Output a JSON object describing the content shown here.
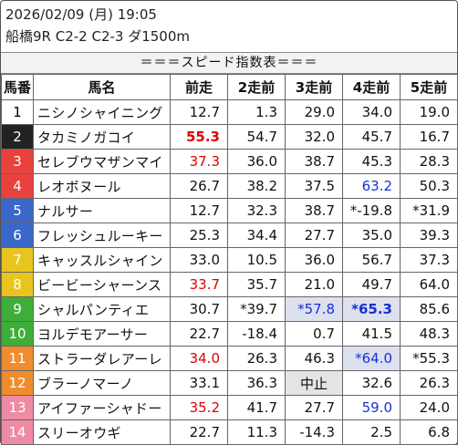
{
  "header": {
    "datetime": "2026/02/09 (月) 19:05",
    "race": "船橋9R C2-2 C2-3 ダ1500m"
  },
  "title": "＝＝＝スピード指数表＝＝＝",
  "columns": [
    "馬番",
    "馬名",
    "前走",
    "2走前",
    "3走前",
    "4走前",
    "5走前"
  ],
  "colors": {
    "red": "#e00000",
    "blue": "#1530d8",
    "highlight": "#dde0ef"
  },
  "rows": [
    {
      "no": "1",
      "name": "ニシノシャイニング",
      "bg": "#ffffff",
      "fg": "#000000",
      "vals": [
        {
          "t": "12.7"
        },
        {
          "t": "1.3"
        },
        {
          "t": "29.0"
        },
        {
          "t": "34.0"
        },
        {
          "t": "19.0"
        }
      ]
    },
    {
      "no": "2",
      "name": "タカミノガコイ",
      "bg": "#222222",
      "fg": "#ffffff",
      "vals": [
        {
          "t": "55.3",
          "c": "red",
          "b": true
        },
        {
          "t": "54.7"
        },
        {
          "t": "32.0"
        },
        {
          "t": "45.7"
        },
        {
          "t": "16.7"
        }
      ]
    },
    {
      "no": "3",
      "name": "セレブウマザンマイ",
      "bg": "#e8423e",
      "fg": "#ffffff",
      "vals": [
        {
          "t": "37.3",
          "c": "red"
        },
        {
          "t": "36.0"
        },
        {
          "t": "38.7"
        },
        {
          "t": "45.3"
        },
        {
          "t": "28.3"
        }
      ]
    },
    {
      "no": "4",
      "name": "レオボヌール",
      "bg": "#e8423e",
      "fg": "#ffffff",
      "vals": [
        {
          "t": "26.7"
        },
        {
          "t": "38.2"
        },
        {
          "t": "37.5"
        },
        {
          "t": "63.2",
          "c": "blue"
        },
        {
          "t": "50.3"
        }
      ]
    },
    {
      "no": "5",
      "name": "ナルサー",
      "bg": "#3b67c9",
      "fg": "#ffffff",
      "vals": [
        {
          "t": "12.7"
        },
        {
          "t": "32.3"
        },
        {
          "t": "38.7"
        },
        {
          "t": "*-19.8"
        },
        {
          "t": "*31.9"
        }
      ]
    },
    {
      "no": "6",
      "name": "フレッシュルーキー",
      "bg": "#3b67c9",
      "fg": "#ffffff",
      "vals": [
        {
          "t": "25.3"
        },
        {
          "t": "34.4"
        },
        {
          "t": "27.7"
        },
        {
          "t": "35.0"
        },
        {
          "t": "39.3"
        }
      ]
    },
    {
      "no": "7",
      "name": "キャッスルシャイン",
      "bg": "#e8c51e",
      "fg": "#ffffff",
      "vals": [
        {
          "t": "33.0"
        },
        {
          "t": "10.5"
        },
        {
          "t": "36.0"
        },
        {
          "t": "56.7"
        },
        {
          "t": "37.3"
        }
      ]
    },
    {
      "no": "8",
      "name": "ビービーシャーンス",
      "bg": "#e8c51e",
      "fg": "#ffffff",
      "vals": [
        {
          "t": "33.7",
          "c": "red"
        },
        {
          "t": "35.7"
        },
        {
          "t": "21.0"
        },
        {
          "t": "49.7"
        },
        {
          "t": "64.0"
        }
      ]
    },
    {
      "no": "9",
      "name": "シャルパンティエ",
      "bg": "#3fae38",
      "fg": "#ffffff",
      "vals": [
        {
          "t": "30.7"
        },
        {
          "t": "*39.7"
        },
        {
          "t": "*57.8",
          "c": "blue",
          "h": true
        },
        {
          "t": "*65.3",
          "c": "blue",
          "b": true,
          "h": true
        },
        {
          "t": "85.6"
        }
      ]
    },
    {
      "no": "10",
      "name": "ヨルデモアーサー",
      "bg": "#3fae38",
      "fg": "#ffffff",
      "vals": [
        {
          "t": "22.7"
        },
        {
          "t": "-18.4"
        },
        {
          "t": "0.7"
        },
        {
          "t": "41.5"
        },
        {
          "t": "48.3"
        }
      ]
    },
    {
      "no": "11",
      "name": "ストラーダレアーレ",
      "bg": "#ef8d2e",
      "fg": "#ffffff",
      "vals": [
        {
          "t": "34.0",
          "c": "red"
        },
        {
          "t": "26.3"
        },
        {
          "t": "46.3"
        },
        {
          "t": "*64.0",
          "c": "blue",
          "h": true
        },
        {
          "t": "*55.3"
        }
      ]
    },
    {
      "no": "12",
      "name": "ブラーノマーノ",
      "bg": "#ef8d2e",
      "fg": "#ffffff",
      "vals": [
        {
          "t": "33.1"
        },
        {
          "t": "36.3"
        },
        {
          "t": "中止",
          "g": true
        },
        {
          "t": "32.6"
        },
        {
          "t": "26.3"
        }
      ]
    },
    {
      "no": "13",
      "name": "アイファーシャドー",
      "bg": "#ee8aa3",
      "fg": "#ffffff",
      "vals": [
        {
          "t": "35.2",
          "c": "red"
        },
        {
          "t": "41.7"
        },
        {
          "t": "27.7"
        },
        {
          "t": "59.0",
          "c": "blue"
        },
        {
          "t": "24.0"
        }
      ]
    },
    {
      "no": "14",
      "name": "スリーオウギ",
      "bg": "#ee8aa3",
      "fg": "#ffffff",
      "vals": [
        {
          "t": "22.7"
        },
        {
          "t": "11.3"
        },
        {
          "t": "-14.3"
        },
        {
          "t": "2.5"
        },
        {
          "t": "6.8"
        }
      ]
    }
  ]
}
